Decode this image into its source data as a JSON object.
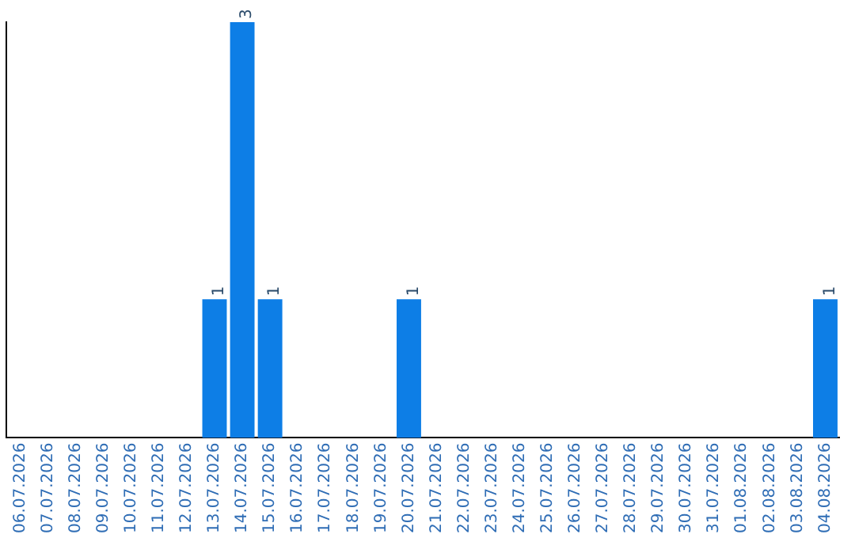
{
  "chart_data": {
    "type": "bar",
    "categories": [
      "06.07.2026",
      "07.07.2026",
      "08.07.2026",
      "09.07.2026",
      "10.07.2026",
      "11.07.2026",
      "12.07.2026",
      "13.07.2026",
      "14.07.2026",
      "15.07.2026",
      "16.07.2026",
      "17.07.2026",
      "18.07.2026",
      "19.07.2026",
      "20.07.2026",
      "21.07.2026",
      "22.07.2026",
      "23.07.2026",
      "24.07.2026",
      "25.07.2026",
      "26.07.2026",
      "27.07.2026",
      "28.07.2026",
      "29.07.2026",
      "30.07.2026",
      "31.07.2026",
      "01.08.2026",
      "02.08.2026",
      "03.08.2026",
      "04.08.2026"
    ],
    "values": [
      0,
      0,
      0,
      0,
      0,
      0,
      0,
      1,
      3,
      1,
      0,
      0,
      0,
      0,
      1,
      0,
      0,
      0,
      0,
      0,
      0,
      0,
      0,
      0,
      0,
      0,
      0,
      0,
      0,
      1
    ],
    "value_labels": [
      null,
      null,
      null,
      null,
      null,
      null,
      null,
      "1",
      "3",
      "1",
      null,
      null,
      null,
      null,
      "1",
      null,
      null,
      null,
      null,
      null,
      null,
      null,
      null,
      null,
      null,
      null,
      null,
      null,
      null,
      "1"
    ],
    "color": "#0d7ee6",
    "grid": false,
    "legend": false,
    "tick_labels": "x"
  }
}
